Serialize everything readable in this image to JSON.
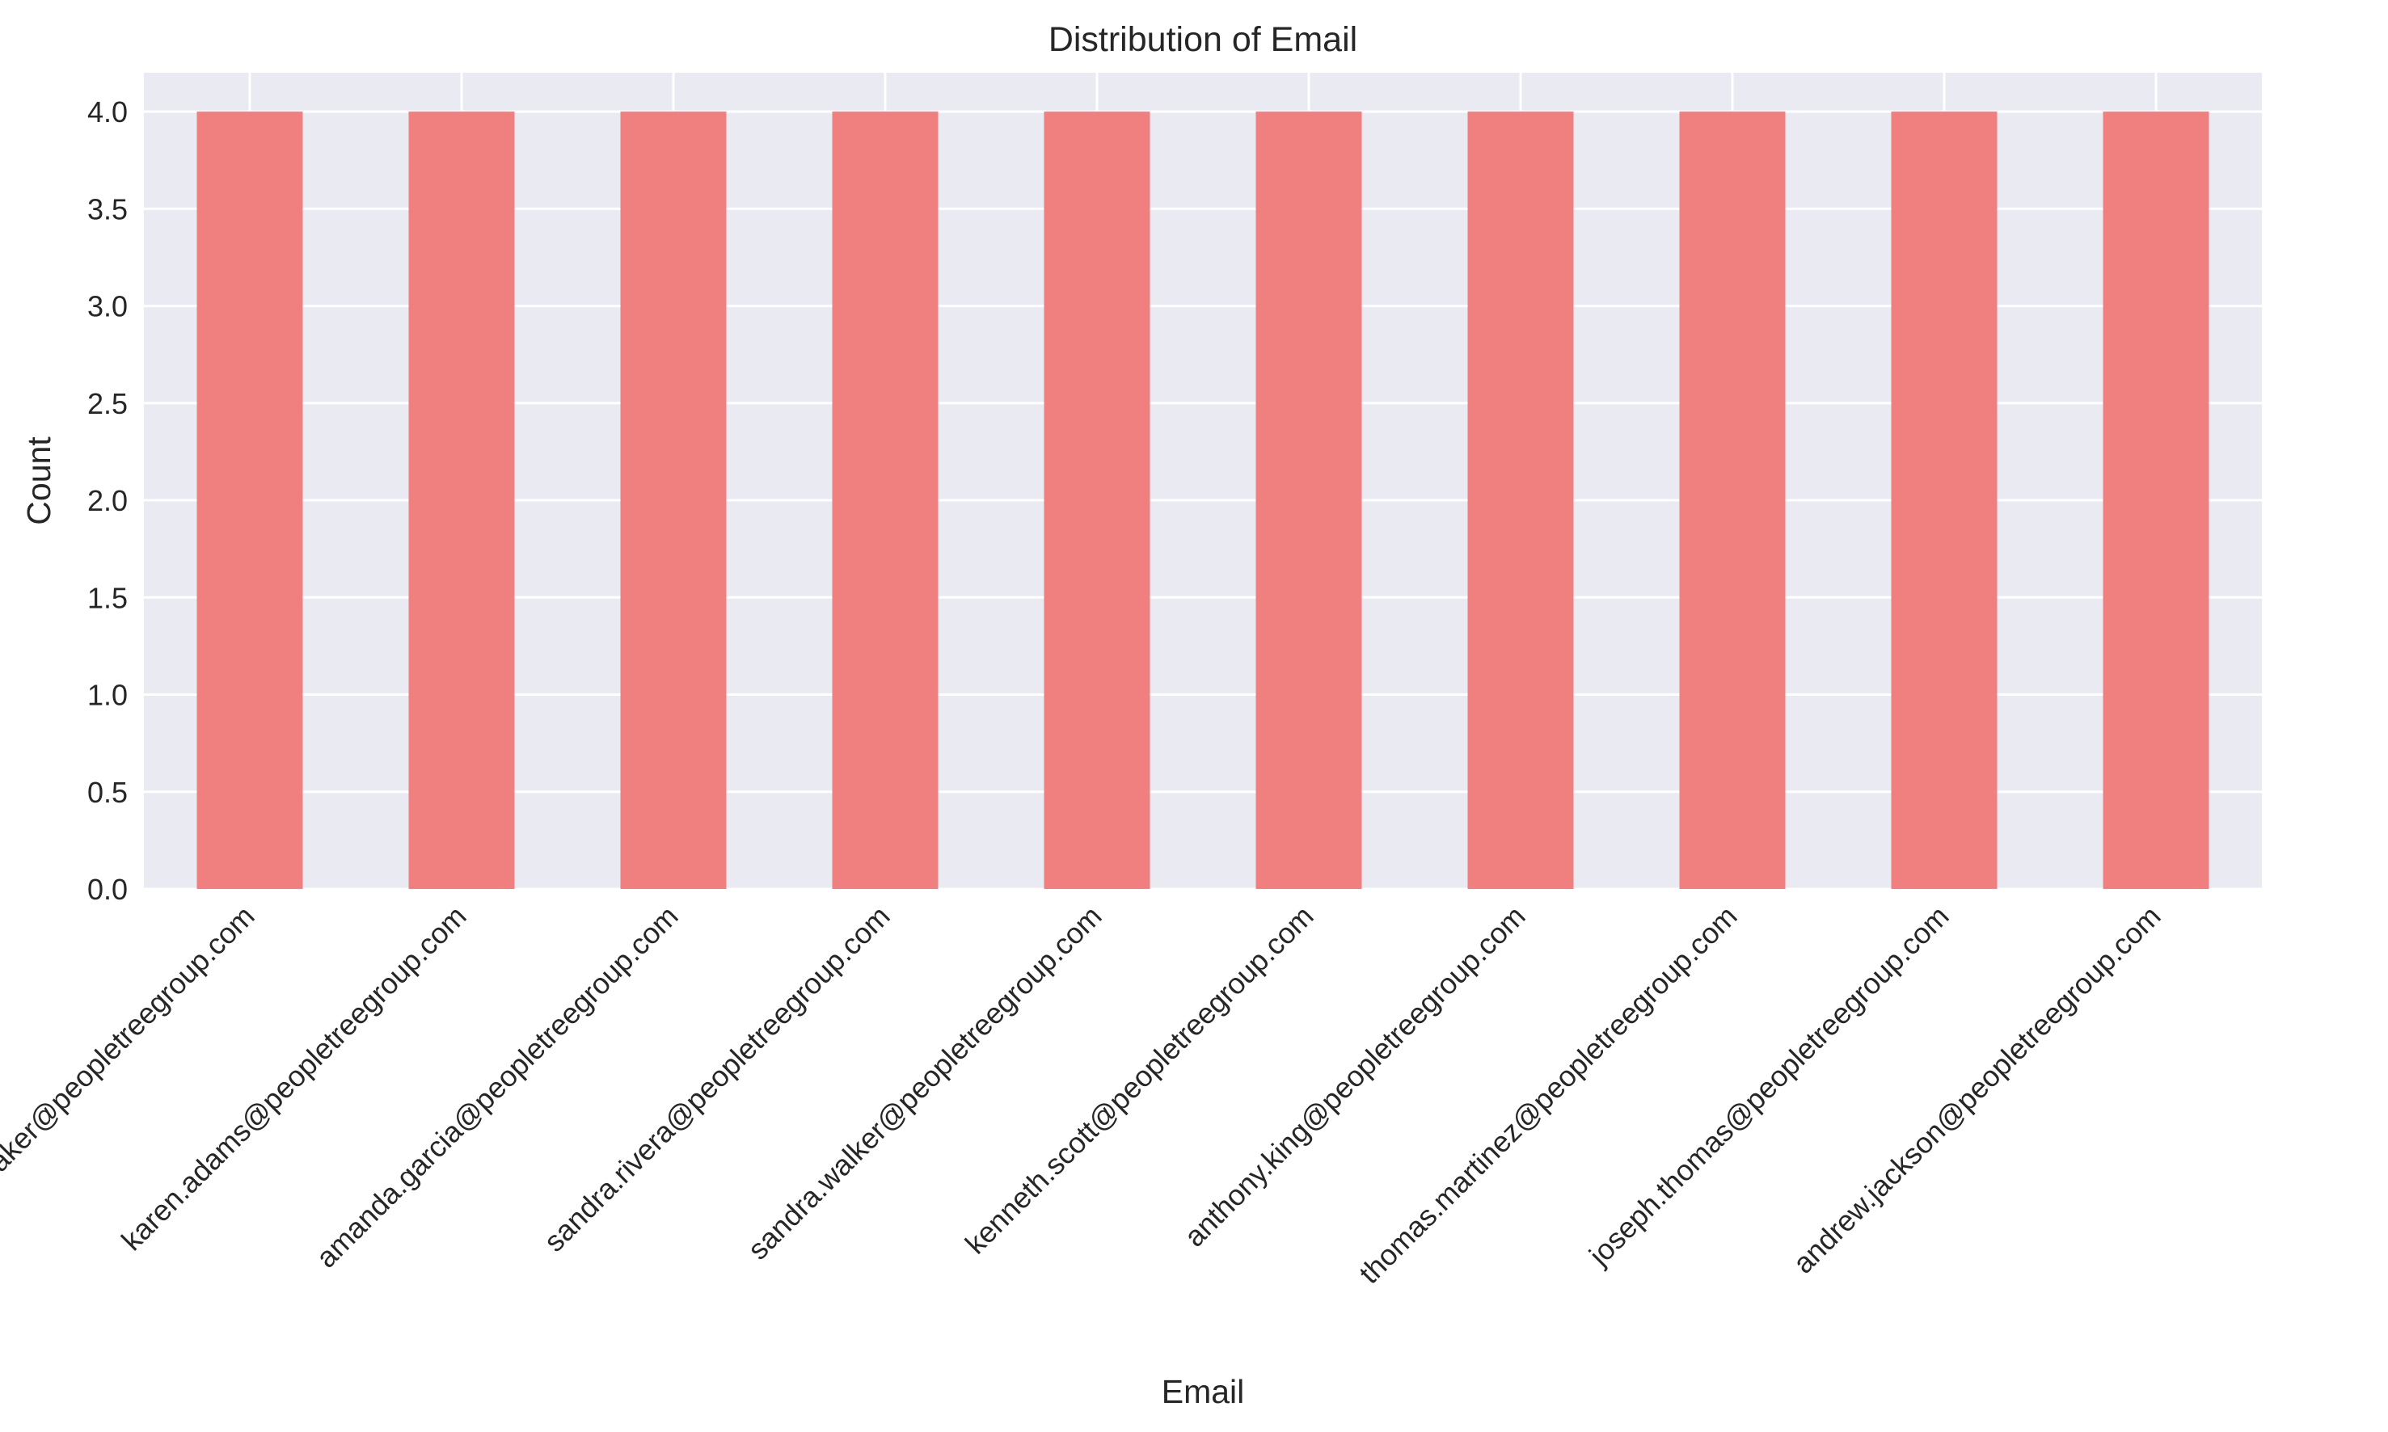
{
  "colors": {
    "bar": "#f08080",
    "plot_background": "#eaeaf2",
    "grid": "#ffffff",
    "text": "#262626"
  },
  "chart_data": {
    "type": "bar",
    "title": "Distribution of Email",
    "xlabel": "Email",
    "ylabel": "Count",
    "categories": [
      "donna.baker@peopletreegroup.com",
      "karen.adams@peopletreegroup.com",
      "amanda.garcia@peopletreegroup.com",
      "sandra.rivera@peopletreegroup.com",
      "sandra.walker@peopletreegroup.com",
      "kenneth.scott@peopletreegroup.com",
      "anthony.king@peopletreegroup.com",
      "thomas.martinez@peopletreegroup.com",
      "joseph.thomas@peopletreegroup.com",
      "andrew.jackson@peopletreegroup.com"
    ],
    "values": [
      4,
      4,
      4,
      4,
      4,
      4,
      4,
      4,
      4,
      4
    ],
    "ylim": [
      0,
      4.2
    ],
    "yticks": [
      "0.0",
      "0.5",
      "1.0",
      "1.5",
      "2.0",
      "2.5",
      "3.0",
      "3.5",
      "4.0"
    ],
    "grid": true,
    "xtick_rotation": "45"
  }
}
